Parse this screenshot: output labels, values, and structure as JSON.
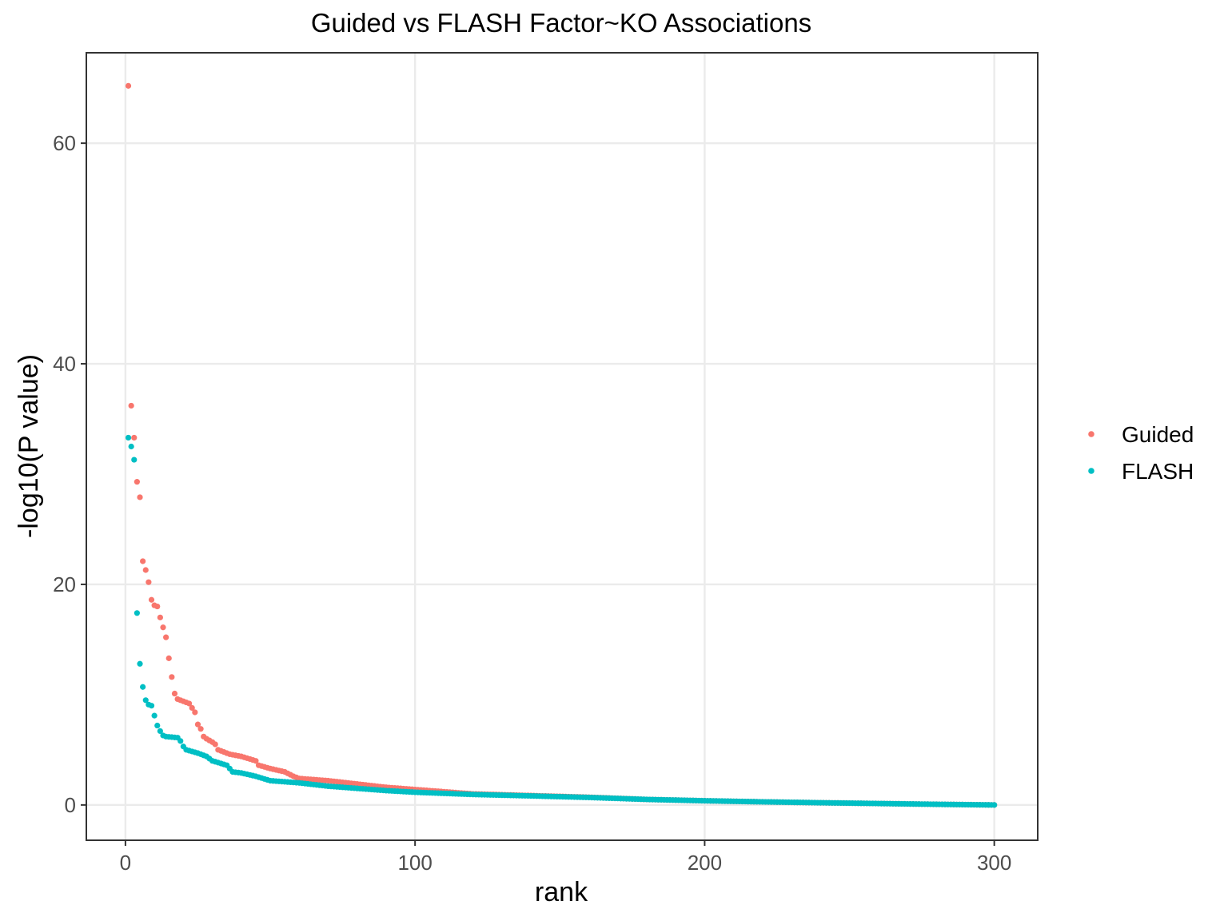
{
  "chart_data": {
    "type": "scatter",
    "title": "Guided vs FLASH Factor~KO Associations",
    "xlabel": "rank",
    "ylabel": "-log10(P value)",
    "xlim": [
      -13.5,
      315
    ],
    "ylim": [
      -3.2,
      68.2
    ],
    "x_ticks": [
      0,
      100,
      200,
      300
    ],
    "y_ticks": [
      0,
      20,
      40,
      60
    ],
    "grid": true,
    "legend_position": "right",
    "point_count": 300,
    "series": [
      {
        "name": "Guided",
        "color": "#F8766D",
        "anchors": [
          [
            1,
            65.2
          ],
          [
            2,
            36.2
          ],
          [
            3,
            33.3
          ],
          [
            4,
            29.3
          ],
          [
            5,
            27.9
          ],
          [
            6,
            22.1
          ],
          [
            7,
            21.3
          ],
          [
            8,
            20.2
          ],
          [
            9,
            18.6
          ],
          [
            10,
            18.1
          ],
          [
            11,
            18.0
          ],
          [
            12,
            17.0
          ],
          [
            13,
            16.1
          ],
          [
            14,
            15.2
          ],
          [
            15,
            13.3
          ],
          [
            16,
            11.6
          ],
          [
            17,
            10.1
          ],
          [
            18,
            9.6
          ],
          [
            20,
            9.4
          ],
          [
            22,
            9.2
          ],
          [
            23,
            8.8
          ],
          [
            24,
            8.4
          ],
          [
            25,
            7.3
          ],
          [
            26,
            6.9
          ],
          [
            27,
            6.2
          ],
          [
            28,
            6.0
          ],
          [
            30,
            5.7
          ],
          [
            31,
            5.5
          ],
          [
            32,
            5.0
          ],
          [
            34,
            4.8
          ],
          [
            36,
            4.6
          ],
          [
            40,
            4.4
          ],
          [
            45,
            4.0
          ],
          [
            46,
            3.6
          ],
          [
            50,
            3.3
          ],
          [
            55,
            3.0
          ],
          [
            58,
            2.6
          ],
          [
            60,
            2.4
          ],
          [
            70,
            2.2
          ],
          [
            80,
            1.9
          ],
          [
            90,
            1.6
          ],
          [
            100,
            1.4
          ],
          [
            110,
            1.2
          ],
          [
            120,
            1.0
          ],
          [
            140,
            0.85
          ],
          [
            160,
            0.7
          ],
          [
            180,
            0.5
          ],
          [
            200,
            0.38
          ],
          [
            220,
            0.28
          ],
          [
            240,
            0.2
          ],
          [
            260,
            0.13
          ],
          [
            280,
            0.06
          ],
          [
            300,
            0.0
          ]
        ]
      },
      {
        "name": "FLASH",
        "color": "#00BFC4",
        "anchors": [
          [
            1,
            33.3
          ],
          [
            2,
            32.5
          ],
          [
            3,
            31.3
          ],
          [
            4,
            17.4
          ],
          [
            5,
            12.8
          ],
          [
            6,
            10.7
          ],
          [
            7,
            9.5
          ],
          [
            8,
            9.1
          ],
          [
            9,
            9.0
          ],
          [
            10,
            8.1
          ],
          [
            11,
            7.2
          ],
          [
            12,
            6.7
          ],
          [
            13,
            6.3
          ],
          [
            14,
            6.2
          ],
          [
            18,
            6.1
          ],
          [
            19,
            5.8
          ],
          [
            20,
            5.3
          ],
          [
            21,
            5.0
          ],
          [
            25,
            4.7
          ],
          [
            28,
            4.4
          ],
          [
            30,
            4.0
          ],
          [
            35,
            3.6
          ],
          [
            37,
            3.0
          ],
          [
            40,
            2.9
          ],
          [
            45,
            2.6
          ],
          [
            50,
            2.2
          ],
          [
            60,
            2.0
          ],
          [
            70,
            1.7
          ],
          [
            80,
            1.5
          ],
          [
            90,
            1.3
          ],
          [
            100,
            1.15
          ],
          [
            120,
            0.95
          ],
          [
            140,
            0.82
          ],
          [
            160,
            0.68
          ],
          [
            180,
            0.5
          ],
          [
            200,
            0.38
          ],
          [
            220,
            0.28
          ],
          [
            240,
            0.2
          ],
          [
            260,
            0.13
          ],
          [
            280,
            0.06
          ],
          [
            300,
            0.0
          ]
        ]
      }
    ]
  }
}
